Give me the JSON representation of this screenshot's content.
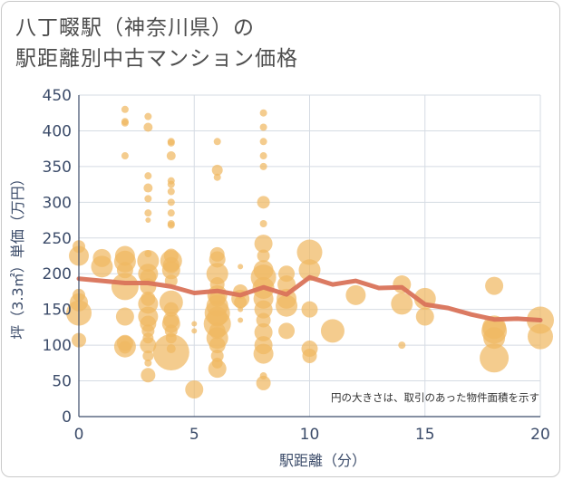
{
  "title_line1": "八丁畷駅（神奈川県）の",
  "title_line2": "駅距離別中古マンション価格",
  "chart_data": {
    "type": "scatter",
    "xlabel": "駅距離（分）",
    "ylabel": "坪（3.3㎡）単価（万円）",
    "note": "円の大きさは、取引のあった物件面積を示す",
    "xlim": [
      0,
      20
    ],
    "ylim": [
      0,
      450
    ],
    "xticks": [
      "0",
      "5",
      "10",
      "15",
      "20"
    ],
    "yticks": [
      "0",
      "50",
      "100",
      "150",
      "200",
      "250",
      "300",
      "350",
      "400",
      "450"
    ],
    "grid": true,
    "bubble_color": "#f0b862",
    "line_color": "#d9735a",
    "trend_line": {
      "x": [
        0,
        1,
        2,
        3,
        4,
        5,
        6,
        7,
        8,
        9,
        10,
        11,
        12,
        13,
        14,
        15,
        16,
        17,
        18,
        19,
        20
      ],
      "y": [
        193,
        190,
        187,
        187,
        182,
        173,
        176,
        170,
        181,
        171,
        195,
        185,
        190,
        180,
        181,
        157,
        152,
        143,
        136,
        137,
        135
      ]
    },
    "points": [
      {
        "x": 0,
        "y": 107,
        "s": 8
      },
      {
        "x": 0,
        "y": 145,
        "s": 14
      },
      {
        "x": 0,
        "y": 160,
        "s": 10
      },
      {
        "x": 0,
        "y": 170,
        "s": 7
      },
      {
        "x": 0,
        "y": 225,
        "s": 11
      },
      {
        "x": 0,
        "y": 238,
        "s": 7
      },
      {
        "x": 1,
        "y": 210,
        "s": 12
      },
      {
        "x": 1,
        "y": 222,
        "s": 10
      },
      {
        "x": 2,
        "y": 430,
        "s": 4
      },
      {
        "x": 2,
        "y": 413,
        "s": 4
      },
      {
        "x": 2,
        "y": 411,
        "s": 4
      },
      {
        "x": 2,
        "y": 365,
        "s": 4
      },
      {
        "x": 2,
        "y": 225,
        "s": 11
      },
      {
        "x": 2,
        "y": 217,
        "s": 12
      },
      {
        "x": 2,
        "y": 205,
        "s": 9
      },
      {
        "x": 2,
        "y": 182,
        "s": 15
      },
      {
        "x": 2,
        "y": 140,
        "s": 10
      },
      {
        "x": 2,
        "y": 103,
        "s": 9
      },
      {
        "x": 2,
        "y": 98,
        "s": 12
      },
      {
        "x": 2,
        "y": 97,
        "s": 7
      },
      {
        "x": 3,
        "y": 420,
        "s": 4
      },
      {
        "x": 3,
        "y": 405,
        "s": 5
      },
      {
        "x": 3,
        "y": 337,
        "s": 4
      },
      {
        "x": 3,
        "y": 320,
        "s": 5
      },
      {
        "x": 3,
        "y": 305,
        "s": 4
      },
      {
        "x": 3,
        "y": 285,
        "s": 4
      },
      {
        "x": 3,
        "y": 275,
        "s": 3
      },
      {
        "x": 3,
        "y": 228,
        "s": 4
      },
      {
        "x": 3,
        "y": 218,
        "s": 12
      },
      {
        "x": 3,
        "y": 200,
        "s": 11
      },
      {
        "x": 3,
        "y": 195,
        "s": 9
      },
      {
        "x": 3,
        "y": 182,
        "s": 9
      },
      {
        "x": 3,
        "y": 165,
        "s": 8
      },
      {
        "x": 3,
        "y": 158,
        "s": 11
      },
      {
        "x": 3,
        "y": 140,
        "s": 11
      },
      {
        "x": 3,
        "y": 130,
        "s": 9
      },
      {
        "x": 3,
        "y": 120,
        "s": 7
      },
      {
        "x": 3,
        "y": 110,
        "s": 6
      },
      {
        "x": 3,
        "y": 100,
        "s": 9
      },
      {
        "x": 3,
        "y": 85,
        "s": 6
      },
      {
        "x": 3,
        "y": 75,
        "s": 4
      },
      {
        "x": 3,
        "y": 58,
        "s": 8
      },
      {
        "x": 4,
        "y": 385,
        "s": 4
      },
      {
        "x": 4,
        "y": 383,
        "s": 4
      },
      {
        "x": 4,
        "y": 365,
        "s": 5
      },
      {
        "x": 4,
        "y": 330,
        "s": 4
      },
      {
        "x": 4,
        "y": 325,
        "s": 4
      },
      {
        "x": 4,
        "y": 315,
        "s": 4
      },
      {
        "x": 4,
        "y": 300,
        "s": 4
      },
      {
        "x": 4,
        "y": 285,
        "s": 4
      },
      {
        "x": 4,
        "y": 270,
        "s": 4
      },
      {
        "x": 4,
        "y": 268,
        "s": 4
      },
      {
        "x": 4,
        "y": 225,
        "s": 8
      },
      {
        "x": 4,
        "y": 218,
        "s": 12
      },
      {
        "x": 4,
        "y": 212,
        "s": 9
      },
      {
        "x": 4,
        "y": 205,
        "s": 10
      },
      {
        "x": 4,
        "y": 190,
        "s": 7
      },
      {
        "x": 4,
        "y": 160,
        "s": 13
      },
      {
        "x": 4,
        "y": 150,
        "s": 8
      },
      {
        "x": 4,
        "y": 135,
        "s": 9
      },
      {
        "x": 4,
        "y": 130,
        "s": 10
      },
      {
        "x": 4,
        "y": 120,
        "s": 7
      },
      {
        "x": 4,
        "y": 110,
        "s": 6
      },
      {
        "x": 4,
        "y": 95,
        "s": 5
      },
      {
        "x": 4,
        "y": 90,
        "s": 20
      },
      {
        "x": 5,
        "y": 38,
        "s": 10
      },
      {
        "x": 5,
        "y": 130,
        "s": 3
      },
      {
        "x": 5,
        "y": 120,
        "s": 3
      },
      {
        "x": 6,
        "y": 385,
        "s": 4
      },
      {
        "x": 6,
        "y": 345,
        "s": 6
      },
      {
        "x": 6,
        "y": 335,
        "s": 4
      },
      {
        "x": 6,
        "y": 227,
        "s": 8
      },
      {
        "x": 6,
        "y": 220,
        "s": 9
      },
      {
        "x": 6,
        "y": 200,
        "s": 12
      },
      {
        "x": 6,
        "y": 185,
        "s": 8
      },
      {
        "x": 6,
        "y": 170,
        "s": 11
      },
      {
        "x": 6,
        "y": 165,
        "s": 9
      },
      {
        "x": 6,
        "y": 155,
        "s": 12
      },
      {
        "x": 6,
        "y": 145,
        "s": 14
      },
      {
        "x": 6,
        "y": 140,
        "s": 11
      },
      {
        "x": 6,
        "y": 130,
        "s": 15
      },
      {
        "x": 6,
        "y": 120,
        "s": 9
      },
      {
        "x": 6,
        "y": 110,
        "s": 12
      },
      {
        "x": 6,
        "y": 100,
        "s": 9
      },
      {
        "x": 6,
        "y": 85,
        "s": 7
      },
      {
        "x": 6,
        "y": 75,
        "s": 6
      },
      {
        "x": 6,
        "y": 67,
        "s": 10
      },
      {
        "x": 7,
        "y": 210,
        "s": 3
      },
      {
        "x": 7,
        "y": 175,
        "s": 8
      },
      {
        "x": 7,
        "y": 165,
        "s": 10
      },
      {
        "x": 7,
        "y": 160,
        "s": 7
      },
      {
        "x": 7,
        "y": 150,
        "s": 3
      },
      {
        "x": 7,
        "y": 135,
        "s": 3
      },
      {
        "x": 8,
        "y": 425,
        "s": 4
      },
      {
        "x": 8,
        "y": 405,
        "s": 4
      },
      {
        "x": 8,
        "y": 385,
        "s": 4
      },
      {
        "x": 8,
        "y": 365,
        "s": 4
      },
      {
        "x": 8,
        "y": 350,
        "s": 4
      },
      {
        "x": 8,
        "y": 300,
        "s": 7
      },
      {
        "x": 8,
        "y": 270,
        "s": 4
      },
      {
        "x": 8,
        "y": 242,
        "s": 10
      },
      {
        "x": 8,
        "y": 225,
        "s": 7
      },
      {
        "x": 8,
        "y": 205,
        "s": 11
      },
      {
        "x": 8,
        "y": 195,
        "s": 14
      },
      {
        "x": 8,
        "y": 180,
        "s": 12
      },
      {
        "x": 8,
        "y": 165,
        "s": 11
      },
      {
        "x": 8,
        "y": 150,
        "s": 10
      },
      {
        "x": 8,
        "y": 135,
        "s": 8
      },
      {
        "x": 8,
        "y": 118,
        "s": 10
      },
      {
        "x": 8,
        "y": 100,
        "s": 10
      },
      {
        "x": 8,
        "y": 88,
        "s": 11
      },
      {
        "x": 8,
        "y": 57,
        "s": 4
      },
      {
        "x": 8,
        "y": 47,
        "s": 8
      },
      {
        "x": 9,
        "y": 200,
        "s": 9
      },
      {
        "x": 9,
        "y": 185,
        "s": 10
      },
      {
        "x": 9,
        "y": 165,
        "s": 11
      },
      {
        "x": 9,
        "y": 155,
        "s": 12
      },
      {
        "x": 9,
        "y": 120,
        "s": 9
      },
      {
        "x": 10,
        "y": 230,
        "s": 14
      },
      {
        "x": 10,
        "y": 205,
        "s": 12
      },
      {
        "x": 10,
        "y": 150,
        "s": 9
      },
      {
        "x": 10,
        "y": 95,
        "s": 9
      },
      {
        "x": 10,
        "y": 85,
        "s": 8
      },
      {
        "x": 11,
        "y": 120,
        "s": 13
      },
      {
        "x": 12,
        "y": 170,
        "s": 11
      },
      {
        "x": 14,
        "y": 185,
        "s": 10
      },
      {
        "x": 14,
        "y": 158,
        "s": 12
      },
      {
        "x": 14,
        "y": 100,
        "s": 4
      },
      {
        "x": 15,
        "y": 165,
        "s": 12
      },
      {
        "x": 15,
        "y": 140,
        "s": 10
      },
      {
        "x": 18,
        "y": 183,
        "s": 10
      },
      {
        "x": 18,
        "y": 125,
        "s": 13
      },
      {
        "x": 18,
        "y": 120,
        "s": 14
      },
      {
        "x": 18,
        "y": 110,
        "s": 12
      },
      {
        "x": 18,
        "y": 82,
        "s": 16
      },
      {
        "x": 20,
        "y": 135,
        "s": 15
      },
      {
        "x": 20,
        "y": 112,
        "s": 14
      }
    ]
  }
}
